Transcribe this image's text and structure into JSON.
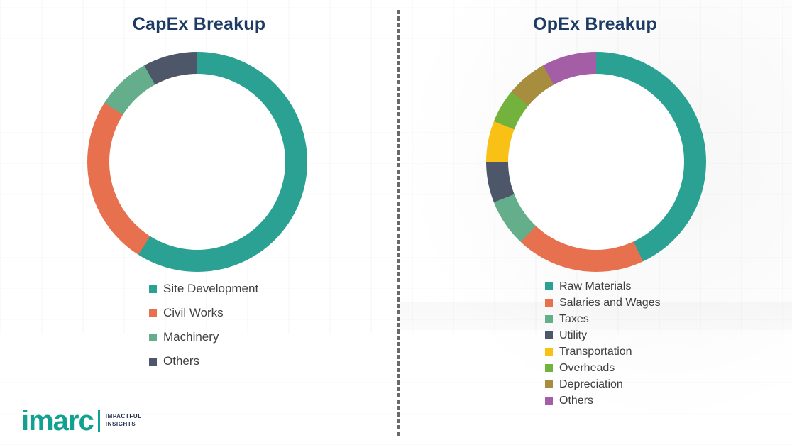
{
  "chart_data": [
    {
      "type": "pie",
      "subtype": "donut",
      "title": "CapEx Breakup",
      "categories": [
        "Site Development",
        "Civil Works",
        "Machinery",
        "Others"
      ],
      "values": [
        59,
        25,
        8,
        8
      ],
      "unit": "percent",
      "colors": [
        "#2aa193",
        "#e7714e",
        "#64ae8c",
        "#4d5769"
      ],
      "start_angle_deg": 0,
      "direction": "clockwise",
      "legend_position": "below-chart"
    },
    {
      "type": "pie",
      "subtype": "donut",
      "title": "OpEx Breakup",
      "categories": [
        "Raw Materials",
        "Salaries and Wages",
        "Taxes",
        "Utility",
        "Transportation",
        "Overheads",
        "Depreciation",
        "Others"
      ],
      "values": [
        43,
        19,
        7,
        6,
        6,
        5,
        6,
        8
      ],
      "unit": "percent",
      "colors": [
        "#2aa193",
        "#e7714e",
        "#64ae8c",
        "#4d5769",
        "#f9c116",
        "#74b23e",
        "#a68e3e",
        "#a45ea5"
      ],
      "start_angle_deg": 0,
      "direction": "clockwise",
      "legend_position": "below-chart"
    }
  ],
  "divider": {
    "style": "dashed-vertical"
  },
  "logo": {
    "brand": "imarc",
    "tagline_line1": "IMPACTFUL",
    "tagline_line2": "INSIGHTS",
    "brand_color": "#12a191"
  }
}
